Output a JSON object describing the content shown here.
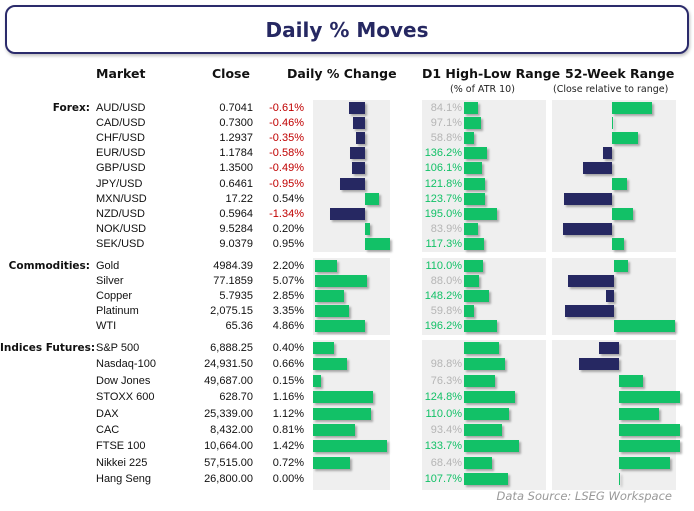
{
  "title": "Daily % Moves",
  "headers": {
    "market": "Market",
    "close": "Close",
    "daily": "Daily % Change",
    "d1": "D1 High-Low Range",
    "d1_sub": "(% of ATR 10)",
    "wk52": "52-Week Range",
    "wk52_sub": "(Close relative to range)"
  },
  "source": "Data Source: LSEG Workspace",
  "colors": {
    "positive": "#12c167",
    "negative": "#262862",
    "neg_text": "#c00000",
    "muted_text": "#b5b5b5",
    "high_text": "#12c167",
    "title": "#262862",
    "panel": "#efefef"
  },
  "chart_data": {
    "type": "table",
    "note_52w_scale": "52-week values are signed bar extents, -1 to 1",
    "sections": [
      {
        "label": "Forex:",
        "rows": [
          {
            "market": "AUD/USD",
            "close": "0.7041",
            "change": "-0.61%",
            "change_value": -0.61,
            "d1": "84.1%",
            "d1_value": 84.1,
            "wk52": 0.63
          },
          {
            "market": "CAD/USD",
            "close": "0.7300",
            "change": "-0.46%",
            "change_value": -0.46,
            "d1": "97.1%",
            "d1_value": 97.1,
            "wk52": 0.02
          },
          {
            "market": "CHF/USD",
            "close": "1.2937",
            "change": "-0.35%",
            "change_value": -0.35,
            "d1": "58.8%",
            "d1_value": 58.8,
            "wk52": 0.41
          },
          {
            "market": "EUR/USD",
            "close": "1.1784",
            "change": "-0.58%",
            "change_value": -0.58,
            "d1": "136.2%",
            "d1_value": 136.2,
            "wk52": -0.14
          },
          {
            "market": "GBP/USD",
            "close": "1.3500",
            "change": "-0.49%",
            "change_value": -0.49,
            "d1": "106.1%",
            "d1_value": 106.1,
            "wk52": -0.45
          },
          {
            "market": "JPY/USD",
            "close": "0.6461",
            "change": "-0.95%",
            "change_value": -0.95,
            "d1": "121.8%",
            "d1_value": 121.8,
            "wk52": 0.23
          },
          {
            "market": "MXN/USD",
            "close": "17.22",
            "change": "0.54%",
            "change_value": 0.54,
            "d1": "123.7%",
            "d1_value": 123.7,
            "wk52": -0.75
          },
          {
            "market": "NZD/USD",
            "close": "0.5964",
            "change": "-1.34%",
            "change_value": -1.34,
            "d1": "195.0%",
            "d1_value": 195.0,
            "wk52": 0.33
          },
          {
            "market": "NOK/USD",
            "close": "9.5284",
            "change": "0.20%",
            "change_value": 0.2,
            "d1": "83.9%",
            "d1_value": 83.9,
            "wk52": -0.77
          },
          {
            "market": "SEK/USD",
            "close": "9.0379",
            "change": "0.95%",
            "change_value": 0.95,
            "d1": "117.3%",
            "d1_value": 117.3,
            "wk52": 0.19
          }
        ]
      },
      {
        "label": "Commodities:",
        "rows": [
          {
            "market": "Gold",
            "close": "4984.39",
            "change": "2.20%",
            "change_value": 2.2,
            "d1": "110.0%",
            "d1_value": 110.0,
            "wk52": 0.22
          },
          {
            "market": "Silver",
            "close": "77.1859",
            "change": "5.07%",
            "change_value": 5.07,
            "d1": "88.0%",
            "d1_value": 88.0,
            "wk52": -0.72
          },
          {
            "market": "Copper",
            "close": "5.7935",
            "change": "2.85%",
            "change_value": 2.85,
            "d1": "148.2%",
            "d1_value": 148.2,
            "wk52": -0.12
          },
          {
            "market": "Platinum",
            "close": "2,075.15",
            "change": "3.35%",
            "change_value": 3.35,
            "d1": "59.8%",
            "d1_value": 59.8,
            "wk52": -0.77
          },
          {
            "market": "WTI",
            "close": "65.36",
            "change": "4.86%",
            "change_value": 4.86,
            "d1": "196.2%",
            "d1_value": 196.2,
            "wk52": 0.95
          }
        ]
      },
      {
        "label": "Indices Futures:",
        "rows": [
          {
            "market": "S&P 500",
            "close": "6,888.25",
            "change": "0.40%",
            "change_value": 0.4,
            "d1": "",
            "d1_value": 85,
            "wk52": -0.33
          },
          {
            "market": "Nasdaq-100",
            "close": "24,931.50",
            "change": "0.66%",
            "change_value": 0.66,
            "d1": "98.8%",
            "d1_value": 98.8,
            "wk52": -0.66
          },
          {
            "market": "Dow Jones",
            "close": "49,687.00",
            "change": "0.15%",
            "change_value": 0.15,
            "d1": "76.3%",
            "d1_value": 76.3,
            "wk52": 0.39
          },
          {
            "market": "STOXX 600",
            "close": "628.70",
            "change": "1.16%",
            "change_value": 1.16,
            "d1": "124.8%",
            "d1_value": 124.8,
            "wk52": 1.0
          },
          {
            "market": "DAX",
            "close": "25,339.00",
            "change": "1.12%",
            "change_value": 1.12,
            "d1": "110.0%",
            "d1_value": 110.0,
            "wk52": 0.66
          },
          {
            "market": "CAC",
            "close": "8,432.00",
            "change": "0.81%",
            "change_value": 0.81,
            "d1": "93.4%",
            "d1_value": 93.4,
            "wk52": 1.0
          },
          {
            "market": "FTSE 100",
            "close": "10,664.00",
            "change": "1.42%",
            "change_value": 1.42,
            "d1": "133.7%",
            "d1_value": 133.7,
            "wk52": 1.0
          },
          {
            "market": "Nikkei 225",
            "close": "57,515.00",
            "change": "0.72%",
            "change_value": 0.72,
            "d1": "68.4%",
            "d1_value": 68.4,
            "wk52": 0.84
          },
          {
            "market": "Hang Seng",
            "close": "26,800.00",
            "change": "0.00%",
            "change_value": 0.0,
            "d1": "107.7%",
            "d1_value": 107.7,
            "wk52": 0.01
          }
        ]
      }
    ]
  }
}
